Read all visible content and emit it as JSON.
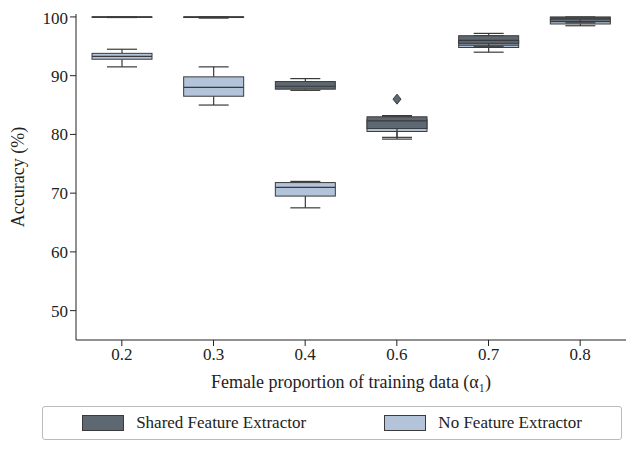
{
  "chart_data": {
    "type": "box",
    "x_label": "Female proportion of training data (α₁)",
    "y_label": "Accuracy (%)",
    "categories": [
      "0.2",
      "0.3",
      "0.4",
      "0.6",
      "0.7",
      "0.8"
    ],
    "ylim": [
      45,
      100.5
    ],
    "yticks": [
      50,
      60,
      70,
      80,
      90,
      100
    ],
    "legend": "bottom",
    "series": [
      {
        "name": "Shared Feature Extractor",
        "color": "#5e6872",
        "boxes": [
          {
            "min": 99.9,
            "q1": 100,
            "median": 100,
            "q3": 100,
            "max": 100,
            "outliers": []
          },
          {
            "min": 99.8,
            "q1": 99.9,
            "median": 100,
            "q3": 100,
            "max": 100,
            "outliers": []
          },
          {
            "min": 87.5,
            "q1": 87.7,
            "median": 88.2,
            "q3": 89,
            "max": 89.5,
            "outliers": []
          },
          {
            "min": 79.5,
            "q1": 81,
            "median": 82.3,
            "q3": 83,
            "max": 83.2,
            "outliers": [
              86
            ]
          },
          {
            "min": 95,
            "q1": 95.5,
            "median": 96,
            "q3": 96.8,
            "max": 97.2,
            "outliers": []
          },
          {
            "min": 99,
            "q1": 99.5,
            "median": 99.8,
            "q3": 100,
            "max": 100,
            "outliers": []
          }
        ]
      },
      {
        "name": "No Feature Extractor",
        "color": "#b3c3d9",
        "boxes": [
          {
            "min": 91.5,
            "q1": 92.8,
            "median": 93.3,
            "q3": 93.8,
            "max": 94.5,
            "outliers": []
          },
          {
            "min": 85,
            "q1": 86.5,
            "median": 88,
            "q3": 89.8,
            "max": 91.5,
            "outliers": []
          },
          {
            "min": 67.5,
            "q1": 69.5,
            "median": 71,
            "q3": 71.8,
            "max": 72,
            "outliers": []
          },
          {
            "min": 79.2,
            "q1": 80.5,
            "median": 81.5,
            "q3": 82.5,
            "max": 83,
            "outliers": []
          },
          {
            "min": 94,
            "q1": 94.8,
            "median": 95.2,
            "q3": 96,
            "max": 96.8,
            "outliers": []
          },
          {
            "min": 98.5,
            "q1": 98.8,
            "median": 99.2,
            "q3": 99.5,
            "max": 99.8,
            "outliers": []
          }
        ]
      }
    ]
  }
}
